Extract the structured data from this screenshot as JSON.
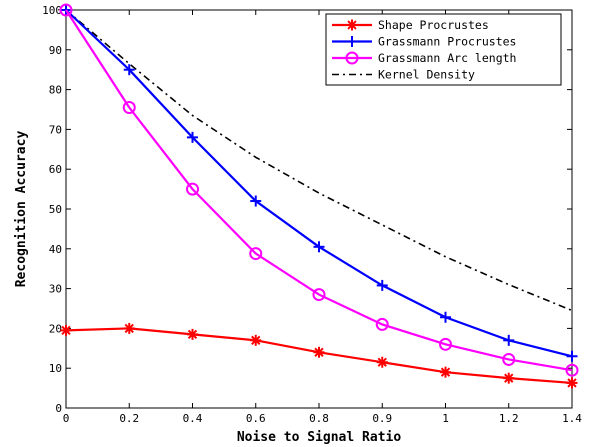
{
  "chart_data": {
    "type": "line",
    "xlabel": "Noise to Signal Ratio",
    "ylabel": "Recognition Accuracy",
    "x": [
      0,
      0.2,
      0.4,
      0.6,
      0.8,
      0.9,
      1,
      1.2,
      1.4
    ],
    "x_tick_labels": [
      "0",
      "0.2",
      "0.4",
      "0.6",
      "0.8",
      "0.9",
      "1",
      "1.2",
      "1.4"
    ],
    "y_ticks": [
      0,
      10,
      20,
      30,
      40,
      50,
      60,
      70,
      80,
      90,
      100
    ],
    "y_tick_labels": [
      "0",
      "10",
      "20",
      "30",
      "40",
      "50",
      "60",
      "70",
      "80",
      "90",
      "100"
    ],
    "ylim": [
      0,
      100
    ],
    "x_axis_scale": "categorical-equal-spacing",
    "grid": false,
    "legend_position": "top-right",
    "series": [
      {
        "name": "Shape Procrustes",
        "color": "#ff0000",
        "marker": "asterisk",
        "line": "solid",
        "values": [
          19.5,
          20,
          18.5,
          17,
          14,
          11.5,
          9,
          7.5,
          6.3
        ]
      },
      {
        "name": "Grassmann Procrustes",
        "color": "#0000ff",
        "marker": "plus",
        "line": "solid",
        "values": [
          100,
          85,
          68,
          52,
          40.5,
          30.8,
          22.8,
          17,
          13
        ]
      },
      {
        "name": "Grassmann Arc length",
        "color": "#ff00ff",
        "marker": "circle",
        "line": "solid",
        "values": [
          100,
          75.5,
          55,
          38.8,
          28.5,
          21,
          16,
          12.2,
          9.5
        ]
      },
      {
        "name": "Kernel Density",
        "color": "#000000",
        "marker": "none",
        "line": "dashdot",
        "values": [
          100,
          86.5,
          73.5,
          63,
          54,
          46,
          38,
          31,
          24.5
        ]
      }
    ]
  }
}
